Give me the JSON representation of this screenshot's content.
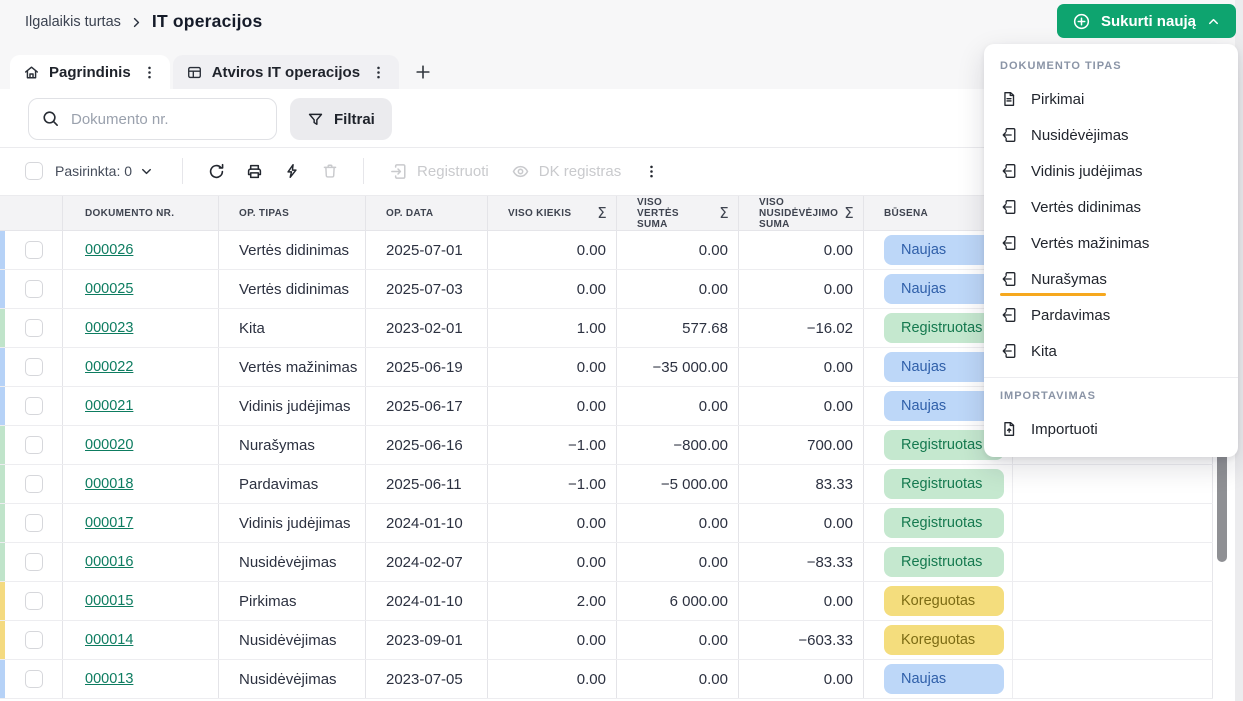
{
  "breadcrumb": {
    "parent": "Ilgalaikis turtas",
    "current": "IT operacijos"
  },
  "create_button": {
    "label": "Sukurti naują"
  },
  "tabs": {
    "main": {
      "label": "Pagrindinis"
    },
    "open_ops": {
      "label": "Atviros IT operacijos"
    }
  },
  "search": {
    "placeholder": "Dokumento nr."
  },
  "filters": {
    "label": "Filtrai"
  },
  "toolbar": {
    "selected_label": "Pasirinkta: 0",
    "register_label": "Registruoti",
    "dk_register_label": "DK registras"
  },
  "table": {
    "sum_symbol": "Σ",
    "columns": [
      {
        "label": "DOKUMENTO NR."
      },
      {
        "label": "OP. TIPAS"
      },
      {
        "label": "OP. DATA"
      },
      {
        "label": "VISO KIEKIS"
      },
      {
        "label": "VISO VERTĖS SUMA"
      },
      {
        "label": "VISO NUSIDĖVĖJIMO SUMA"
      },
      {
        "label": "BŪSENA"
      }
    ],
    "rows": [
      {
        "doc": "000026",
        "type": "Vertės didinimas",
        "date": "2025-07-01",
        "qty": "0.00",
        "value": "0.00",
        "depr": "0.00",
        "status": "Naujas"
      },
      {
        "doc": "000025",
        "type": "Vertės didinimas",
        "date": "2025-07-03",
        "qty": "0.00",
        "value": "0.00",
        "depr": "0.00",
        "status": "Naujas"
      },
      {
        "doc": "000023",
        "type": "Kita",
        "date": "2023-02-01",
        "qty": "1.00",
        "value": "577.68",
        "depr": "−16.02",
        "status": "Registruotas"
      },
      {
        "doc": "000022",
        "type": "Vertės mažinimas",
        "date": "2025-06-19",
        "qty": "0.00",
        "value": "−35 000.00",
        "depr": "0.00",
        "status": "Naujas"
      },
      {
        "doc": "000021",
        "type": "Vidinis judėjimas",
        "date": "2025-06-17",
        "qty": "0.00",
        "value": "0.00",
        "depr": "0.00",
        "status": "Naujas"
      },
      {
        "doc": "000020",
        "type": "Nurašymas",
        "date": "2025-06-16",
        "qty": "−1.00",
        "value": "−800.00",
        "depr": "700.00",
        "status": "Registruotas"
      },
      {
        "doc": "000018",
        "type": "Pardavimas",
        "date": "2025-06-11",
        "qty": "−1.00",
        "value": "−5 000.00",
        "depr": "83.33",
        "status": "Registruotas"
      },
      {
        "doc": "000017",
        "type": "Vidinis judėjimas",
        "date": "2024-01-10",
        "qty": "0.00",
        "value": "0.00",
        "depr": "0.00",
        "status": "Registruotas"
      },
      {
        "doc": "000016",
        "type": "Nusidėvėjimas",
        "date": "2024-02-07",
        "qty": "0.00",
        "value": "0.00",
        "depr": "−83.33",
        "status": "Registruotas"
      },
      {
        "doc": "000015",
        "type": "Pirkimas",
        "date": "2024-01-10",
        "qty": "2.00",
        "value": "6 000.00",
        "depr": "0.00",
        "status": "Koreguotas"
      },
      {
        "doc": "000014",
        "type": "Nusidėvėjimas",
        "date": "2023-09-01",
        "qty": "0.00",
        "value": "0.00",
        "depr": "−603.33",
        "status": "Koreguotas"
      },
      {
        "doc": "000013",
        "type": "Nusidėvėjimas",
        "date": "2023-07-05",
        "qty": "0.00",
        "value": "0.00",
        "depr": "0.00",
        "status": "Naujas"
      }
    ]
  },
  "statuses": {
    "Naujas": {
      "bg": "#bdd7f8",
      "text": "#2f5fa9",
      "stripe": "#b6d2f7"
    },
    "Registruotas": {
      "bg": "#c5e8cf",
      "text": "#15794f",
      "stripe": "#c0e4ca"
    },
    "Koreguotas": {
      "bg": "#f4dd7d",
      "text": "#7c6b14",
      "stripe": "#f4da80"
    }
  },
  "dropdown": {
    "sections": [
      {
        "title": "DOKUMENTO TIPAS",
        "items": [
          {
            "label": "Pirkimai",
            "icon": "file-text"
          },
          {
            "label": "Nusidėvėjimas",
            "icon": "file-export"
          },
          {
            "label": "Vidinis judėjimas",
            "icon": "file-export"
          },
          {
            "label": "Vertės didinimas",
            "icon": "file-export"
          },
          {
            "label": "Vertės mažinimas",
            "icon": "file-export"
          },
          {
            "label": "Nurašymas",
            "icon": "file-export",
            "underlined": true
          },
          {
            "label": "Pardavimas",
            "icon": "file-export"
          },
          {
            "label": "Kita",
            "icon": "file-export"
          }
        ]
      },
      {
        "title": "IMPORTAVIMAS",
        "items": [
          {
            "label": "Importuoti",
            "icon": "file-import"
          }
        ]
      }
    ]
  },
  "colors": {
    "accent_green": "#0ea46f",
    "link_teal": "#0d7c60",
    "highlight_orange": "#f6a81e"
  }
}
